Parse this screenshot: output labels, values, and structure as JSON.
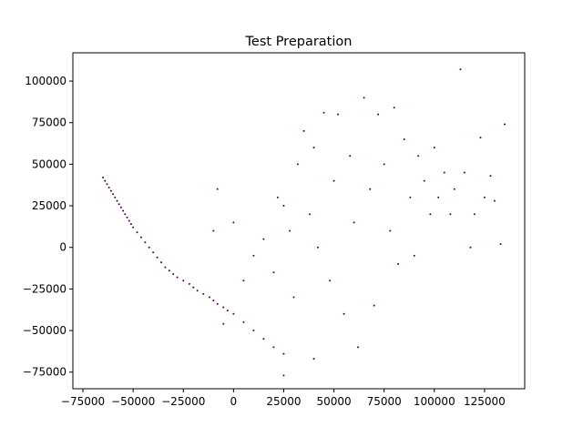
{
  "chart_data": {
    "type": "scatter",
    "title": "Test Preparation",
    "xlabel": "",
    "ylabel": "",
    "xlim": [
      -80000,
      145000
    ],
    "ylim": [
      -85000,
      117000
    ],
    "x_ticks": [
      -75000,
      -50000,
      -25000,
      0,
      25000,
      50000,
      75000,
      100000,
      125000
    ],
    "x_tick_labels": [
      "−75000",
      "−50000",
      "−25000",
      "0",
      "25000",
      "50000",
      "75000",
      "100000",
      "125000"
    ],
    "y_ticks": [
      -75000,
      -50000,
      -25000,
      0,
      25000,
      50000,
      75000,
      100000
    ],
    "y_tick_labels": [
      "−75000",
      "−50000",
      "−25000",
      "0",
      "25000",
      "50000",
      "75000",
      "100000"
    ],
    "grid": false,
    "marker_color": "#440154",
    "marker_size": 1,
    "approx_point_count": 2500,
    "series": [
      {
        "values": [
          [
            -65000,
            42000
          ],
          [
            -64000,
            40000
          ],
          [
            -63000,
            38000
          ],
          [
            -62000,
            36000
          ],
          [
            -61000,
            34000
          ],
          [
            -60000,
            32000
          ],
          [
            -59000,
            30000
          ],
          [
            -58000,
            28000
          ],
          [
            -57000,
            26000
          ],
          [
            -56000,
            24000
          ],
          [
            -55000,
            22000
          ],
          [
            -54000,
            20000
          ],
          [
            -53000,
            18000
          ],
          [
            -52000,
            16000
          ],
          [
            -51000,
            14000
          ],
          [
            -50000,
            12000
          ],
          [
            -48000,
            9000
          ],
          [
            -46000,
            6000
          ],
          [
            -44000,
            3000
          ],
          [
            -42000,
            0
          ],
          [
            -40000,
            -3000
          ],
          [
            -38000,
            -6000
          ],
          [
            -36000,
            -9000
          ],
          [
            -34000,
            -12000
          ],
          [
            -32000,
            -14000
          ],
          [
            -30000,
            -16000
          ],
          [
            -28000,
            -18000
          ],
          [
            -25000,
            -20000
          ],
          [
            -22000,
            -22000
          ],
          [
            -20000,
            -24000
          ],
          [
            -18000,
            -26000
          ],
          [
            -15000,
            -28000
          ],
          [
            -12000,
            -30000
          ],
          [
            -10000,
            -32000
          ],
          [
            -8000,
            -34000
          ],
          [
            -5000,
            -36000
          ],
          [
            -3000,
            -38000
          ],
          [
            0,
            -40000
          ],
          [
            5000,
            -45000
          ],
          [
            10000,
            -50000
          ],
          [
            15000,
            -55000
          ],
          [
            20000,
            -60000
          ],
          [
            25000,
            -64000
          ],
          [
            40000,
            -67000
          ],
          [
            25000,
            -77000
          ],
          [
            -5000,
            -46000
          ],
          [
            -10000,
            10000
          ],
          [
            -8000,
            35000
          ],
          [
            0,
            15000
          ],
          [
            5000,
            -20000
          ],
          [
            10000,
            -5000
          ],
          [
            15000,
            5000
          ],
          [
            20000,
            -15000
          ],
          [
            22000,
            30000
          ],
          [
            25000,
            25000
          ],
          [
            28000,
            10000
          ],
          [
            30000,
            -30000
          ],
          [
            32000,
            50000
          ],
          [
            35000,
            70000
          ],
          [
            38000,
            20000
          ],
          [
            40000,
            60000
          ],
          [
            42000,
            0
          ],
          [
            45000,
            81000
          ],
          [
            48000,
            -20000
          ],
          [
            50000,
            40000
          ],
          [
            52000,
            80000
          ],
          [
            55000,
            -40000
          ],
          [
            58000,
            55000
          ],
          [
            60000,
            15000
          ],
          [
            62000,
            -60000
          ],
          [
            65000,
            90000
          ],
          [
            68000,
            35000
          ],
          [
            70000,
            -35000
          ],
          [
            72000,
            80000
          ],
          [
            75000,
            50000
          ],
          [
            78000,
            10000
          ],
          [
            80000,
            84000
          ],
          [
            82000,
            -10000
          ],
          [
            85000,
            65000
          ],
          [
            88000,
            30000
          ],
          [
            90000,
            -5000
          ],
          [
            92000,
            55000
          ],
          [
            95000,
            40000
          ],
          [
            98000,
            20000
          ],
          [
            100000,
            60000
          ],
          [
            102000,
            30000
          ],
          [
            105000,
            45000
          ],
          [
            108000,
            20000
          ],
          [
            110000,
            35000
          ],
          [
            113000,
            107000
          ],
          [
            115000,
            45000
          ],
          [
            118000,
            0
          ],
          [
            120000,
            20000
          ],
          [
            123000,
            66000
          ],
          [
            125000,
            30000
          ],
          [
            128000,
            43000
          ],
          [
            130000,
            28000
          ],
          [
            133000,
            2000
          ],
          [
            135000,
            74000
          ]
        ]
      }
    ]
  }
}
